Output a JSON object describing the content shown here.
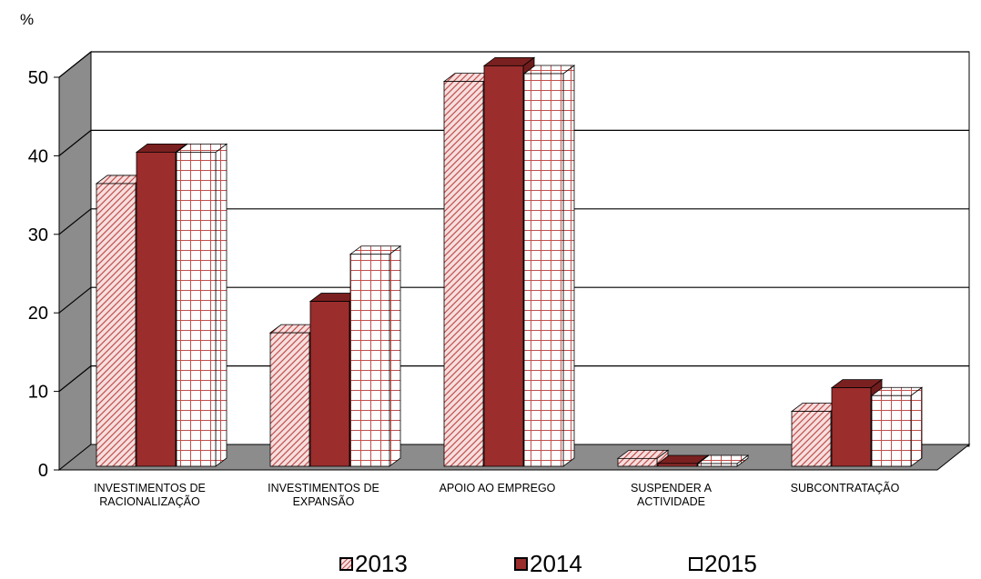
{
  "chart_data": {
    "type": "bar",
    "unit_label": "%",
    "categories": [
      [
        "INVESTIMENTOS DE",
        "RACIONALIZAÇÃO"
      ],
      [
        "INVESTIMENTOS DE",
        "EXPANSÃO"
      ],
      [
        "APOIO AO EMPREGO"
      ],
      [
        "SUSPENDER A",
        "ACTIVIDADE"
      ],
      [
        "SUBCONTRATAÇÃO"
      ]
    ],
    "series": [
      {
        "name": "2013",
        "values": [
          36,
          17,
          49,
          1,
          7
        ],
        "color": "#f2c4c4",
        "pattern": "diagonal"
      },
      {
        "name": "2014",
        "values": [
          40,
          21,
          51,
          0,
          10
        ],
        "color": "#9b2d2d",
        "pattern": "solid"
      },
      {
        "name": "2015",
        "values": [
          40,
          27,
          50,
          0,
          9
        ],
        "color": "#ffffff",
        "pattern": "grid"
      }
    ],
    "ylim": [
      0,
      50
    ],
    "yticks": [
      0,
      10,
      20,
      30,
      40,
      50
    ],
    "grid": true,
    "legend_position": "bottom",
    "wall_color": "#8c8c8c",
    "floor_color": "#8c8c8c",
    "pattern_color": "#c0504d"
  }
}
